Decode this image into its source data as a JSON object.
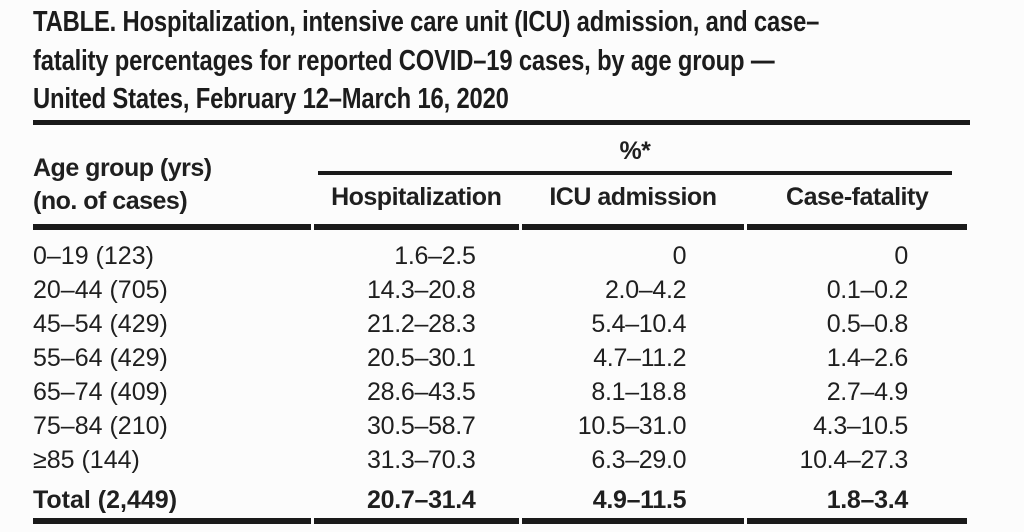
{
  "title_lines": [
    "TABLE. Hospitalization, intensive care unit (ICU) admission, and case–",
    "fatality percentages for reported COVID–19 cases, by age group —",
    "United States, February 12–March 16, 2020"
  ],
  "table": {
    "col1_header_line1": "Age group (yrs)",
    "col1_header_line2": "(no. of cases)",
    "spanner_label": "%*",
    "columns": [
      "Hospitalization",
      "ICU admission",
      "Case-fatality"
    ],
    "rows": [
      {
        "age_group": "0–19 (123)",
        "hospitalization": "1.6–2.5",
        "icu_admission": "0",
        "case_fatality": "0"
      },
      {
        "age_group": "20–44 (705)",
        "hospitalization": "14.3–20.8",
        "icu_admission": "2.0–4.2",
        "case_fatality": "0.1–0.2"
      },
      {
        "age_group": "45–54 (429)",
        "hospitalization": "21.2–28.3",
        "icu_admission": "5.4–10.4",
        "case_fatality": "0.5–0.8"
      },
      {
        "age_group": "55–64 (429)",
        "hospitalization": "20.5–30.1",
        "icu_admission": "4.7–11.2",
        "case_fatality": "1.4–2.6"
      },
      {
        "age_group": "65–74 (409)",
        "hospitalization": "28.6–43.5",
        "icu_admission": "8.1–18.8",
        "case_fatality": "2.7–4.9"
      },
      {
        "age_group": "75–84 (210)",
        "hospitalization": "30.5–58.7",
        "icu_admission": "10.5–31.0",
        "case_fatality": "4.3–10.5"
      },
      {
        "age_group": "≥85 (144)",
        "hospitalization": "31.3–70.3",
        "icu_admission": "6.3–29.0",
        "case_fatality": "10.4–27.3"
      }
    ],
    "total_row": {
      "age_group": "Total (2,449)",
      "hospitalization": "20.7–31.4",
      "icu_admission": "4.9–11.5",
      "case_fatality": "1.8–3.4"
    }
  },
  "colors": {
    "text": "#1f1f1f",
    "rule": "#1a1a1a",
    "background": "#fcfcfc"
  }
}
